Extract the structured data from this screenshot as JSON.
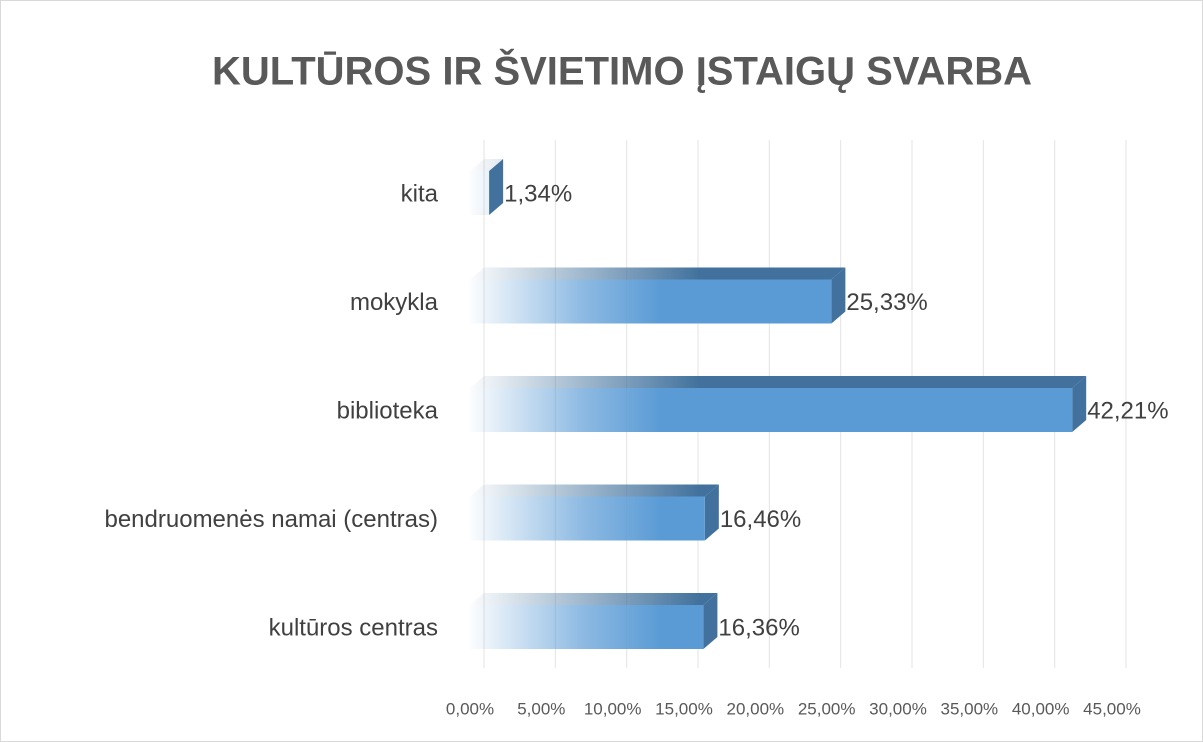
{
  "chart_data": {
    "type": "bar",
    "orientation": "horizontal",
    "title": "KULTŪROS IR ŠVIETIMO ĮSTAIGŲ SVARBA",
    "categories": [
      "kita",
      "mokykla",
      "biblioteka",
      "bendruomenės namai (centras)",
      "kultūros centras"
    ],
    "values": [
      1.34,
      25.33,
      42.21,
      16.46,
      16.36
    ],
    "value_labels": [
      "1,34%",
      "25,33%",
      "42,21%",
      "16,46%",
      "16,36%"
    ],
    "color": "#5b9bd5",
    "xlim": [
      0,
      45
    ],
    "xticks": [
      {
        "value": 0,
        "label": "0,00%"
      },
      {
        "value": 5,
        "label": "5,00%"
      },
      {
        "value": 10,
        "label": "10,00%"
      },
      {
        "value": 15,
        "label": "15,00%"
      },
      {
        "value": 20,
        "label": "20,00%"
      },
      {
        "value": 25,
        "label": "25,00%"
      },
      {
        "value": 30,
        "label": "30,00%"
      },
      {
        "value": 35,
        "label": "35,00%"
      },
      {
        "value": 40,
        "label": "40,00%"
      },
      {
        "value": 45,
        "label": "45,00%"
      }
    ],
    "grid": true
  }
}
